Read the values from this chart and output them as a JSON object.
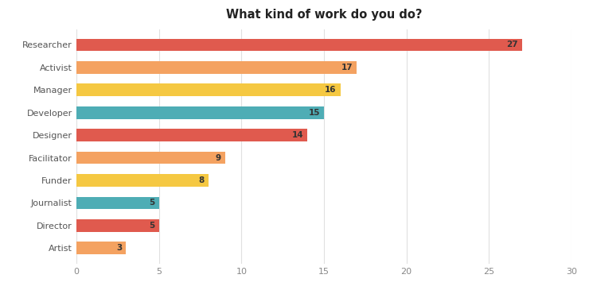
{
  "title": "What kind of work do you do?",
  "categories": [
    "Researcher",
    "Activist",
    "Manager",
    "Developer",
    "Designer",
    "Facilitator",
    "Funder",
    "Journalist",
    "Director",
    "Artist"
  ],
  "values": [
    27,
    17,
    16,
    15,
    14,
    9,
    8,
    5,
    5,
    3
  ],
  "colors": [
    "#E05A4E",
    "#F4A261",
    "#F5C842",
    "#4EADB5",
    "#E05A4E",
    "#F4A261",
    "#F5C842",
    "#4EADB5",
    "#E05A4E",
    "#F4A261"
  ],
  "xlim": [
    0,
    30
  ],
  "xticks": [
    0,
    5,
    10,
    15,
    20,
    25,
    30
  ],
  "background_color": "#ffffff",
  "grid_color": "#e0e0e0",
  "title_fontsize": 10.5,
  "label_fontsize": 8,
  "value_fontsize": 7.5,
  "bar_height": 0.55
}
